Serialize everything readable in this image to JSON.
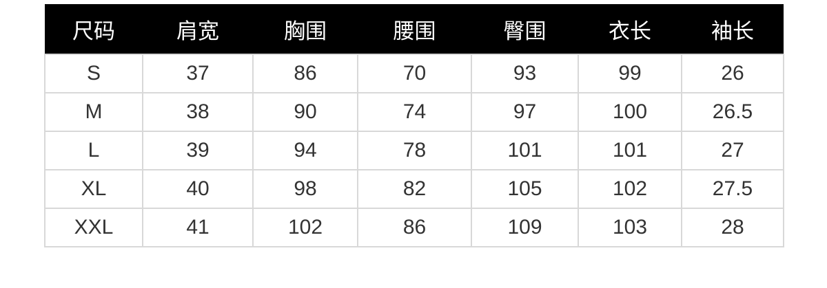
{
  "headers": [
    "尺码",
    "肩宽",
    "胸围",
    "腰围",
    "臀围",
    "衣长",
    "袖长"
  ],
  "rows": [
    [
      "S",
      "37",
      "86",
      "70",
      "93",
      "99",
      "26"
    ],
    [
      "M",
      "38",
      "90",
      "74",
      "97",
      "100",
      "26.5"
    ],
    [
      "L",
      "39",
      "94",
      "78",
      "101",
      "101",
      "27"
    ],
    [
      "XL",
      "40",
      "98",
      "82",
      "105",
      "102",
      "27.5"
    ],
    [
      "XXL",
      "41",
      "102",
      "86",
      "109",
      "103",
      "28"
    ]
  ]
}
